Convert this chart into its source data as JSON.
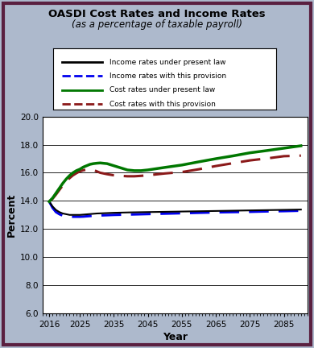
{
  "title_line1": "OASDI Cost Rates and Income Rates",
  "title_line2": "(as a percentage of taxable payroll)",
  "xlabel": "Year",
  "ylabel": "Percent",
  "xlim": [
    2014,
    2092
  ],
  "ylim": [
    6.0,
    20.0
  ],
  "yticks": [
    6.0,
    8.0,
    10.0,
    12.0,
    14.0,
    16.0,
    18.0,
    20.0
  ],
  "xticks": [
    2016,
    2025,
    2035,
    2045,
    2055,
    2065,
    2075,
    2085
  ],
  "background_color": "#adb9cc",
  "plot_bg_color": "#ffffff",
  "border_color": "#5a2040",
  "legend_labels": [
    "Income rates under present law",
    "Income rates with this provision",
    "Cost rates under present law",
    "Cost rates with this provision"
  ],
  "legend_colors": [
    "#000000",
    "#0000ee",
    "#007700",
    "#8b1a1a"
  ],
  "income_present_law_years": [
    2016,
    2017,
    2018,
    2019,
    2020,
    2021,
    2022,
    2023,
    2024,
    2025,
    2026,
    2027,
    2028,
    2029,
    2030,
    2032,
    2035,
    2040,
    2045,
    2050,
    2055,
    2060,
    2065,
    2070,
    2075,
    2080,
    2085,
    2090
  ],
  "income_present_law_vals": [
    13.95,
    13.6,
    13.35,
    13.2,
    13.1,
    13.05,
    13.0,
    13.0,
    13.0,
    13.0,
    13.02,
    13.04,
    13.06,
    13.08,
    13.1,
    13.12,
    13.15,
    13.18,
    13.2,
    13.22,
    13.24,
    13.26,
    13.28,
    13.3,
    13.32,
    13.34,
    13.36,
    13.38
  ],
  "income_provision_years": [
    2016,
    2017,
    2018,
    2019,
    2020,
    2021,
    2022,
    2023,
    2024,
    2025,
    2026,
    2027,
    2028,
    2029,
    2030,
    2032,
    2035,
    2040,
    2045,
    2050,
    2055,
    2060,
    2065,
    2070,
    2075,
    2080,
    2085,
    2090
  ],
  "income_provision_vals": [
    13.95,
    13.5,
    13.2,
    13.05,
    12.95,
    12.9,
    12.88,
    12.87,
    12.87,
    12.87,
    12.88,
    12.9,
    12.92,
    12.94,
    12.95,
    12.97,
    13.0,
    13.03,
    13.06,
    13.09,
    13.12,
    13.15,
    13.18,
    13.2,
    13.22,
    13.25,
    13.27,
    13.3
  ],
  "cost_present_law_years": [
    2016,
    2017,
    2018,
    2019,
    2020,
    2021,
    2022,
    2023,
    2024,
    2025,
    2026,
    2027,
    2028,
    2029,
    2030,
    2031,
    2033,
    2035,
    2037,
    2039,
    2041,
    2043,
    2045,
    2050,
    2055,
    2060,
    2065,
    2070,
    2075,
    2080,
    2085,
    2090
  ],
  "cost_present_law_vals": [
    13.95,
    14.2,
    14.55,
    14.9,
    15.25,
    15.55,
    15.8,
    16.0,
    16.15,
    16.25,
    16.4,
    16.5,
    16.6,
    16.65,
    16.68,
    16.7,
    16.65,
    16.5,
    16.35,
    16.2,
    16.15,
    16.15,
    16.2,
    16.38,
    16.55,
    16.78,
    17.0,
    17.2,
    17.42,
    17.58,
    17.75,
    17.92
  ],
  "cost_provision_years": [
    2016,
    2017,
    2018,
    2019,
    2020,
    2021,
    2022,
    2023,
    2024,
    2025,
    2026,
    2027,
    2028,
    2029,
    2030,
    2031,
    2033,
    2035,
    2037,
    2039,
    2041,
    2043,
    2045,
    2050,
    2055,
    2060,
    2065,
    2070,
    2075,
    2080,
    2085,
    2090
  ],
  "cost_provision_vals": [
    13.95,
    14.15,
    14.45,
    14.78,
    15.1,
    15.38,
    15.62,
    15.82,
    15.97,
    16.1,
    16.18,
    16.22,
    16.25,
    16.2,
    16.1,
    16.0,
    15.9,
    15.82,
    15.78,
    15.75,
    15.75,
    15.78,
    15.82,
    15.95,
    16.05,
    16.25,
    16.48,
    16.68,
    16.88,
    17.02,
    17.18,
    17.22
  ]
}
